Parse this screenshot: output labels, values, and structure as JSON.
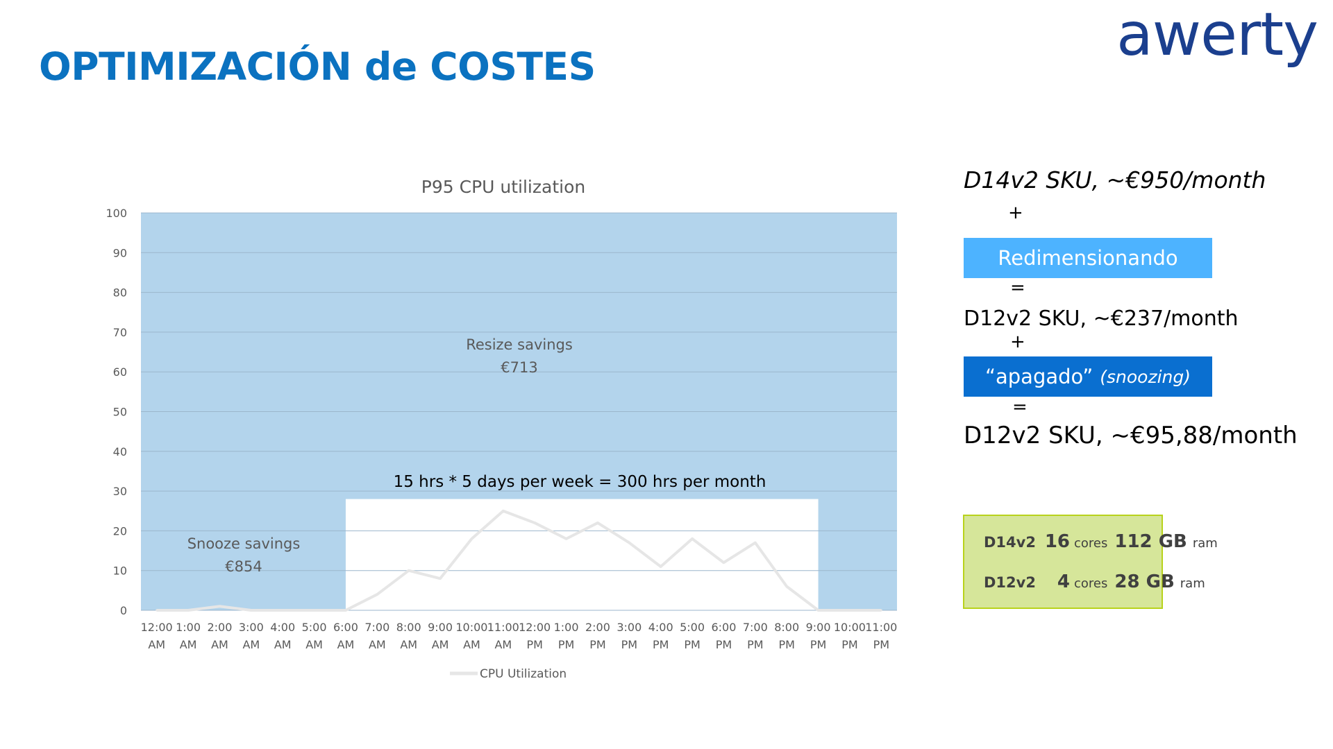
{
  "header": {
    "title": "OPTIMIZACIÓN de COSTES",
    "logo_text": "awerty"
  },
  "chart_data": {
    "type": "line",
    "title": "P95 CPU utilization",
    "xlabel": "",
    "ylabel": "",
    "ylim": [
      0,
      100
    ],
    "yticks": [
      0,
      10,
      20,
      30,
      40,
      50,
      60,
      70,
      80,
      90,
      100
    ],
    "grid": true,
    "legend_position": "bottom",
    "categories": [
      "12:00 AM",
      "1:00 AM",
      "2:00 AM",
      "3:00 AM",
      "4:00 AM",
      "5:00 AM",
      "6:00 AM",
      "7:00 AM",
      "8:00 AM",
      "9:00 AM",
      "10:00 AM",
      "11:00 AM",
      "12:00 PM",
      "1:00 PM",
      "2:00 PM",
      "3:00 PM",
      "4:00 PM",
      "5:00 PM",
      "6:00 PM",
      "7:00 PM",
      "8:00 PM",
      "9:00 PM",
      "10:00 PM",
      "11:00 PM"
    ],
    "series": [
      {
        "name": "CPU Utilization",
        "values": [
          0,
          0,
          1,
          0,
          0,
          0,
          0,
          4,
          10,
          8,
          18,
          25,
          22,
          18,
          22,
          17,
          11,
          18,
          12,
          17,
          6,
          0,
          0,
          0
        ]
      }
    ],
    "active_window": {
      "from": "6:00 AM",
      "to": "9:00 PM",
      "ymax": 28
    },
    "annotations": {
      "resize_label": "Resize savings",
      "resize_value": "€713",
      "snooze_label": "Snooze savings",
      "snooze_value": "€854",
      "window_label": "15 hrs * 5 days per week = 300 hrs per month"
    },
    "colors": {
      "savings_area": "#b3d4ec",
      "line": "#e6e6e6",
      "grid": "#9bb6cc"
    }
  },
  "side": {
    "line1": "D14v2 SKU, ~€950/month",
    "plus1": "+",
    "box1": "Redimensionando",
    "eq1": "=",
    "line2": "D12v2 SKU, ~€237/month",
    "plus2": "+",
    "box2_main": "“apagado”",
    "box2_italic": "(snoozing)",
    "eq2": "=",
    "line3": "D12v2 SKU, ~€95,88/month",
    "colors": {
      "box1": "#4db3ff",
      "box2": "#0a6fd0",
      "spec_bg": "#d6e69a",
      "spec_border": "#b8d21b"
    }
  },
  "specs": [
    {
      "sku": "D14v2",
      "cores": "16",
      "cores_label": "cores",
      "ram": "112 GB",
      "ram_label": "ram"
    },
    {
      "sku": "D12v2",
      "cores": "4",
      "cores_label": "cores",
      "ram": "28 GB",
      "ram_label": "ram"
    }
  ]
}
